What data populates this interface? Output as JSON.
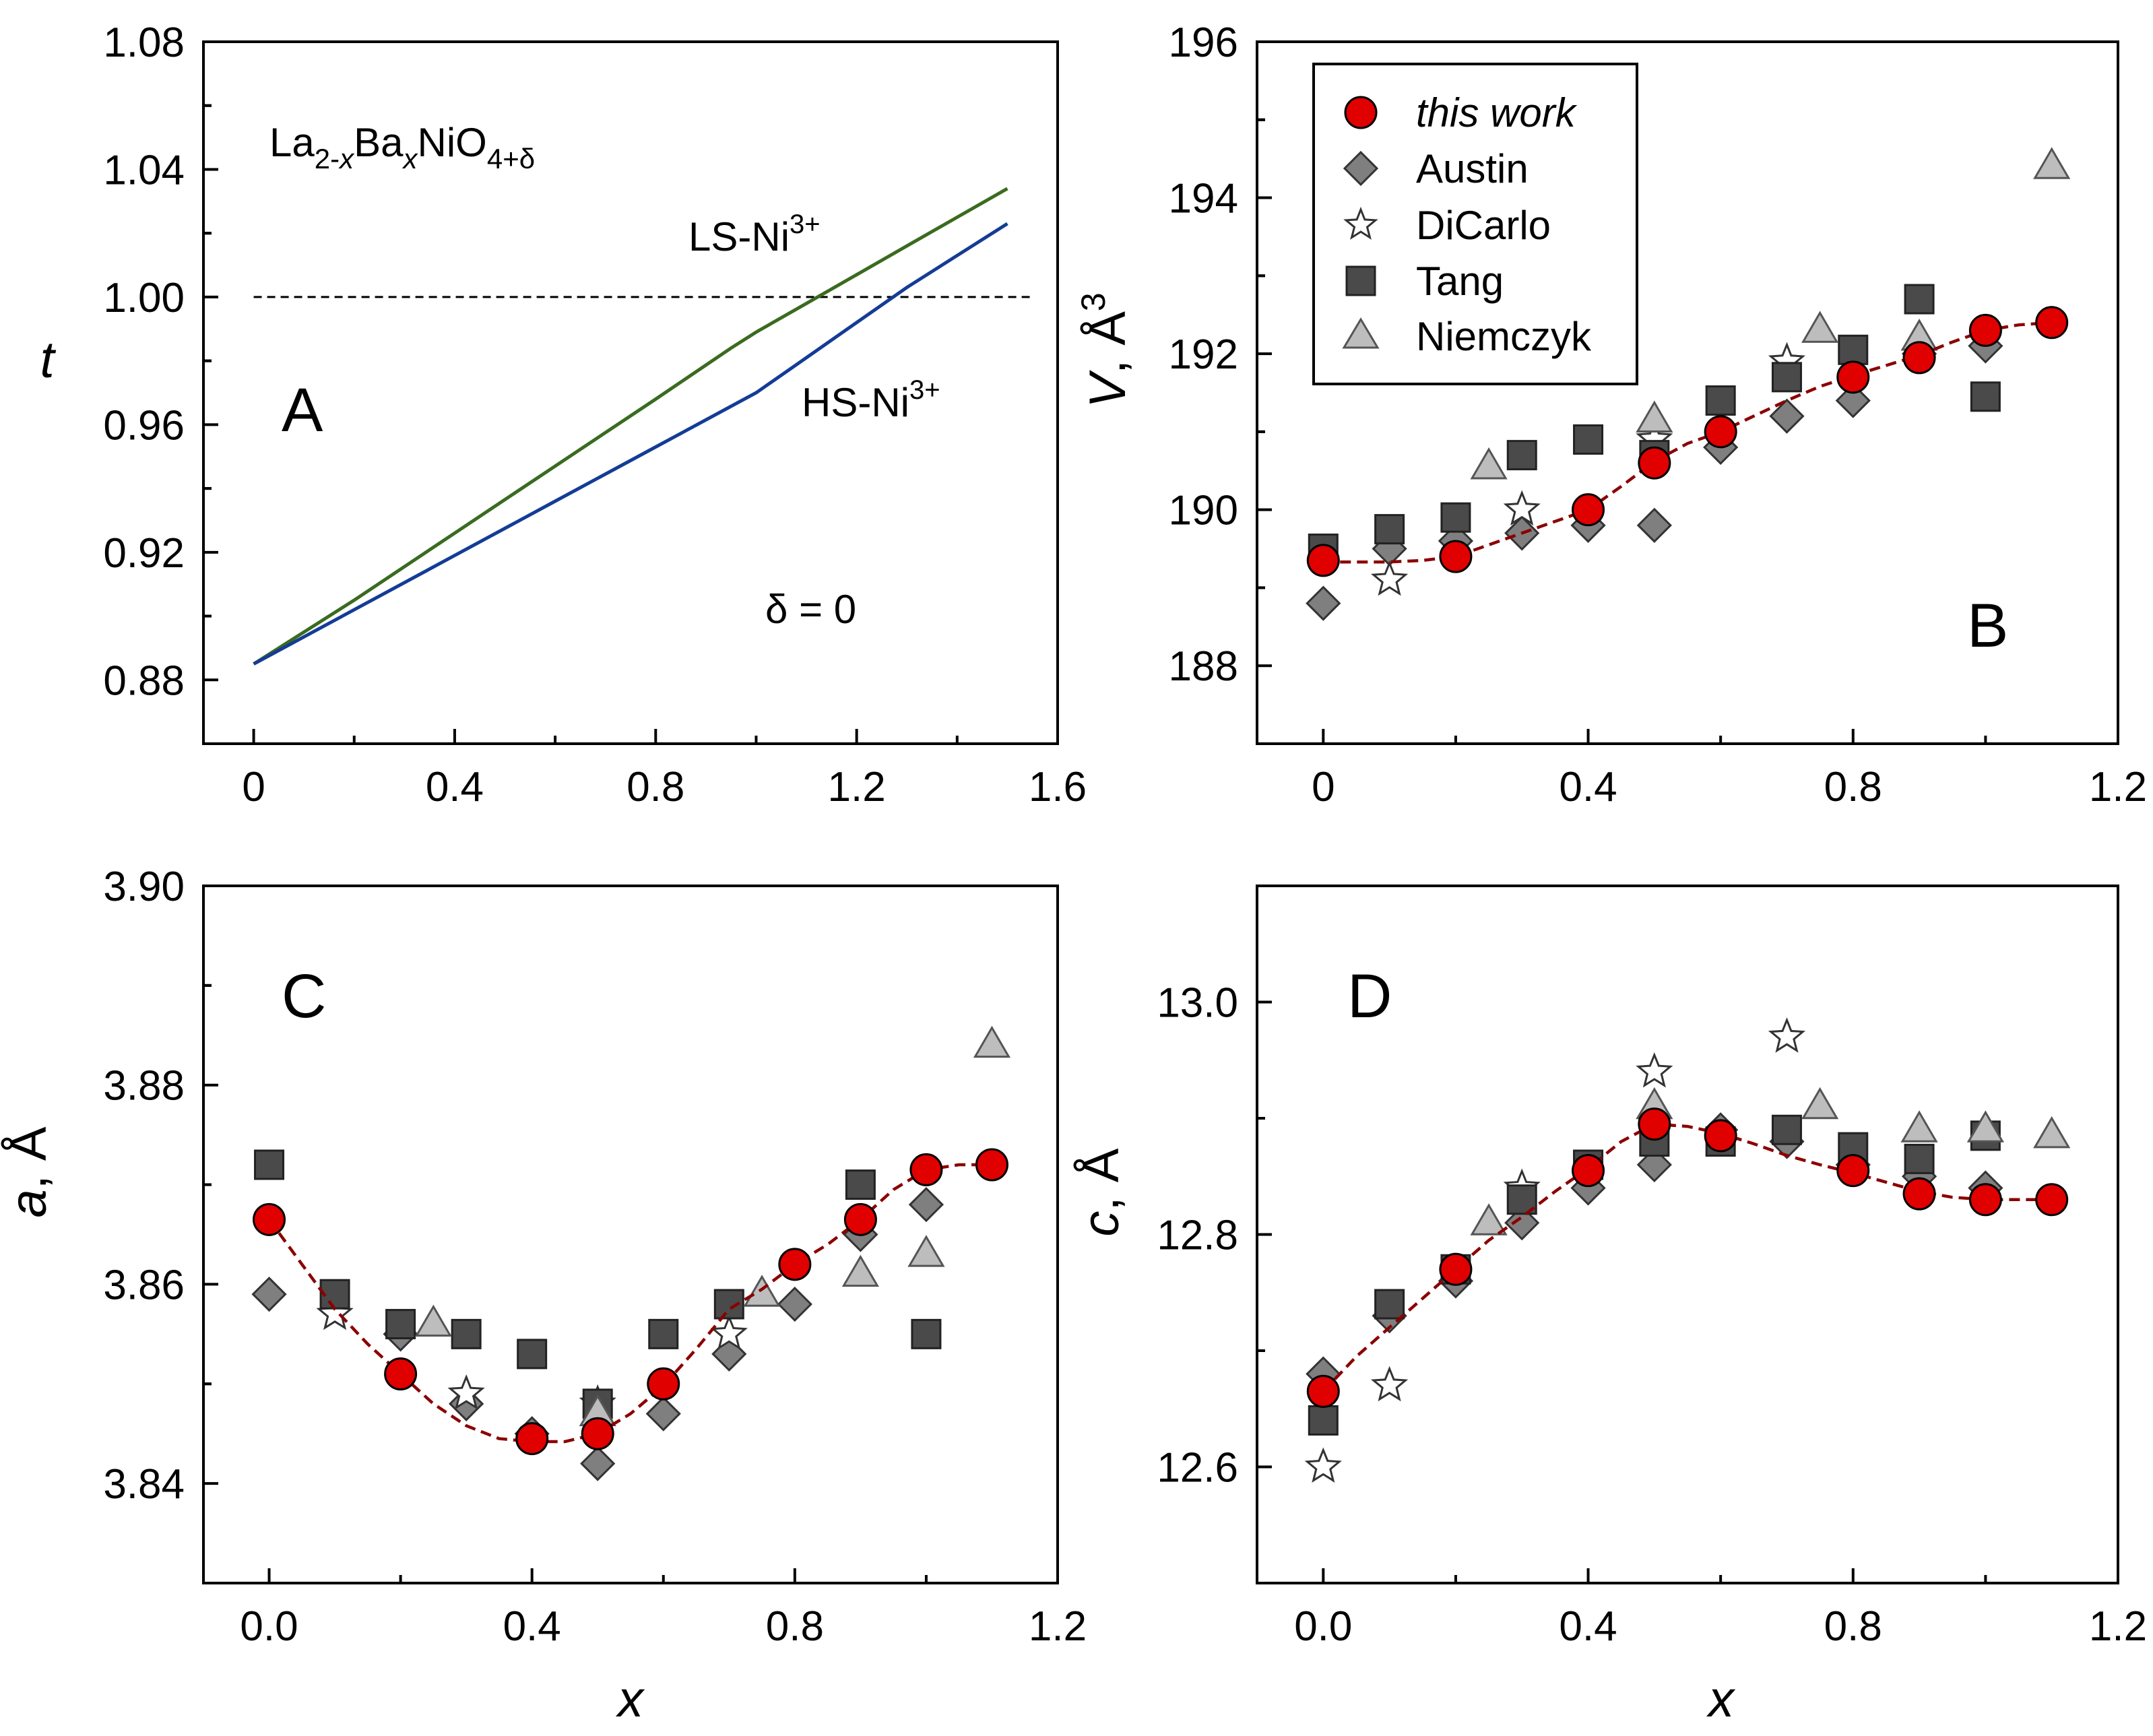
{
  "colors": {
    "this_work_fill": "#e00000",
    "fit_line": "#8b0000",
    "austin": "#7f7f7f",
    "dicarlo": "#ffffff",
    "tang": "#4a4a4a",
    "niemczyk": "#bdbdbd",
    "ls_line": "#3a6b1f",
    "hs_line": "#143c96"
  },
  "legend": {
    "this_work": "this work",
    "austin": "Austin",
    "dicarlo": "DiCarlo",
    "tang": "Tang",
    "niemczyk": "Niemczyk"
  },
  "panel_a": {
    "letter": "A",
    "formula": {
      "la": "La",
      "la_sub": "2-",
      "x1": "x",
      "ba": "Ba",
      "x2": "x",
      "nio": "NiO",
      "o_sub": "4+δ"
    },
    "delta_note": "δ = 0",
    "ls_label": {
      "text": "LS-Ni",
      "sup": "3+"
    },
    "hs_label": {
      "text": "HS-Ni",
      "sup": "3+"
    }
  },
  "panel_b": {
    "letter": "B"
  },
  "panel_c": {
    "letter": "C"
  },
  "panel_d": {
    "letter": "D"
  },
  "chart_data": [
    {
      "id": "A",
      "type": "line",
      "title": "La2-xBaxNiO4+δ",
      "xlabel": "",
      "ylabel": "t",
      "xlim": [
        -0.1,
        1.6
      ],
      "ylim": [
        0.86,
        1.08
      ],
      "xticks": [
        0,
        0.4,
        0.8,
        1.2,
        1.6
      ],
      "xtick_labels": [
        "0",
        "0.4",
        "0.8",
        "1.2",
        "1.6"
      ],
      "yticks": [
        0.88,
        0.92,
        0.96,
        1.0,
        1.04,
        1.08
      ],
      "ytick_labels": [
        "0.88",
        "0.92",
        "0.96",
        "1.00",
        "1.04",
        "1.08"
      ],
      "reference_line": {
        "y": 1.0,
        "x": [
          0,
          1.55
        ],
        "style": "dashed"
      },
      "series": [
        {
          "name": "LS-Ni3+",
          "x": [
            0,
            0.2,
            0.4,
            0.6,
            0.8,
            0.95,
            1.0,
            1.1,
            1.2,
            1.3,
            1.4,
            1.5
          ],
          "y": [
            0.885,
            0.905,
            0.926,
            0.947,
            0.968,
            0.984,
            0.989,
            0.998,
            1.007,
            1.016,
            1.025,
            1.034
          ]
        },
        {
          "name": "HS-Ni3+",
          "x": [
            0,
            0.2,
            0.4,
            0.6,
            0.8,
            1.0,
            1.1,
            1.2,
            1.3,
            1.4,
            1.5
          ],
          "y": [
            0.885,
            0.902,
            0.919,
            0.936,
            0.953,
            0.97,
            0.981,
            0.992,
            1.003,
            1.013,
            1.023
          ]
        }
      ]
    },
    {
      "id": "B",
      "type": "scatter",
      "xlabel": "",
      "ylabel": "V, Å3",
      "xlim": [
        -0.1,
        1.2
      ],
      "ylim": [
        187,
        196
      ],
      "xticks": [
        0,
        0.4,
        0.8,
        1.2
      ],
      "xtick_labels": [
        "0",
        "0.4",
        "0.8",
        "1.2"
      ],
      "yticks": [
        188,
        190,
        192,
        194,
        196
      ],
      "ytick_labels": [
        "188",
        "190",
        "192",
        "194",
        "196"
      ],
      "series": [
        {
          "name": "Austin",
          "x": [
            0,
            0.1,
            0.2,
            0.3,
            0.4,
            0.5,
            0.6,
            0.7,
            0.8,
            0.9,
            1.0
          ],
          "y": [
            188.8,
            189.5,
            189.6,
            189.7,
            189.8,
            189.8,
            190.8,
            191.2,
            191.4,
            192.0,
            192.1
          ]
        },
        {
          "name": "DiCarlo",
          "x": [
            0.1,
            0.3,
            0.5,
            0.7
          ],
          "y": [
            189.1,
            190.0,
            190.9,
            191.9
          ]
        },
        {
          "name": "Tang",
          "x": [
            0,
            0.1,
            0.2,
            0.3,
            0.4,
            0.5,
            0.6,
            0.7,
            0.8,
            0.9,
            1.0
          ],
          "y": [
            189.5,
            189.75,
            189.9,
            190.7,
            190.9,
            190.7,
            191.4,
            191.7,
            192.05,
            192.7,
            191.45
          ]
        },
        {
          "name": "Niemczyk",
          "x": [
            0.25,
            0.5,
            0.75,
            0.9,
            1.1
          ],
          "y": [
            190.55,
            191.15,
            192.3,
            192.2,
            194.4
          ]
        },
        {
          "name": "this work",
          "x": [
            0,
            0.2,
            0.4,
            0.5,
            0.6,
            0.8,
            0.9,
            1.0,
            1.1
          ],
          "y": [
            189.35,
            189.4,
            190.0,
            190.6,
            191.0,
            191.7,
            191.95,
            192.3,
            192.4
          ]
        },
        {
          "name": "fit",
          "line": true,
          "x": [
            0,
            0.05,
            0.1,
            0.15,
            0.2,
            0.25,
            0.3,
            0.35,
            0.4,
            0.45,
            0.5,
            0.55,
            0.6,
            0.65,
            0.7,
            0.75,
            0.8,
            0.85,
            0.9,
            0.95,
            1.0,
            1.05,
            1.1
          ],
          "y": [
            189.33,
            189.33,
            189.33,
            189.35,
            189.4,
            189.55,
            189.7,
            189.85,
            190.0,
            190.3,
            190.62,
            190.85,
            191.0,
            191.2,
            191.4,
            191.58,
            191.72,
            191.85,
            191.98,
            192.15,
            192.3,
            192.37,
            192.4
          ]
        }
      ]
    },
    {
      "id": "C",
      "type": "scatter",
      "xlabel": "x",
      "ylabel": "a, Å",
      "xlim": [
        -0.1,
        1.2
      ],
      "ylim": [
        3.83,
        3.9
      ],
      "xticks": [
        0,
        0.4,
        0.8,
        1.2
      ],
      "xtick_labels": [
        "0.0",
        "0.4",
        "0.8",
        "1.2"
      ],
      "yticks": [
        3.84,
        3.86,
        3.88,
        3.9
      ],
      "ytick_labels": [
        "3.84",
        "3.86",
        "3.88",
        "3.90"
      ],
      "series": [
        {
          "name": "Austin",
          "x": [
            0,
            0.2,
            0.3,
            0.4,
            0.5,
            0.6,
            0.7,
            0.8,
            0.9,
            1.0
          ],
          "y": [
            3.859,
            3.855,
            3.848,
            3.845,
            3.842,
            3.847,
            3.853,
            3.858,
            3.865,
            3.868
          ]
        },
        {
          "name": "DiCarlo",
          "x": [
            0.1,
            0.3,
            0.5,
            0.7
          ],
          "y": [
            3.857,
            3.849,
            3.848,
            3.855
          ]
        },
        {
          "name": "Tang",
          "x": [
            0,
            0.1,
            0.2,
            0.3,
            0.4,
            0.5,
            0.6,
            0.7,
            0.9,
            1.0
          ],
          "y": [
            3.872,
            3.859,
            3.856,
            3.855,
            3.853,
            3.848,
            3.855,
            3.858,
            3.87,
            3.855
          ]
        },
        {
          "name": "Niemczyk",
          "x": [
            0.25,
            0.5,
            0.75,
            0.9,
            1.0,
            1.1
          ],
          "y": [
            3.856,
            3.847,
            3.859,
            3.861,
            3.863,
            3.884
          ]
        },
        {
          "name": "this work",
          "x": [
            0,
            0.2,
            0.4,
            0.5,
            0.6,
            0.8,
            0.9,
            1.0,
            1.1
          ],
          "y": [
            3.8665,
            3.851,
            3.8445,
            3.845,
            3.85,
            3.862,
            3.8665,
            3.8715,
            3.872
          ]
        },
        {
          "name": "fit",
          "line": true,
          "x": [
            0,
            0.05,
            0.1,
            0.15,
            0.2,
            0.25,
            0.3,
            0.35,
            0.4,
            0.45,
            0.5,
            0.55,
            0.6,
            0.65,
            0.7,
            0.75,
            0.8,
            0.85,
            0.9,
            0.95,
            1.0,
            1.05,
            1.1
          ],
          "y": [
            3.8665,
            3.862,
            3.8575,
            3.854,
            3.851,
            3.848,
            3.8458,
            3.8445,
            3.8442,
            3.8442,
            3.845,
            3.847,
            3.8498,
            3.8535,
            3.8575,
            3.8595,
            3.862,
            3.864,
            3.8665,
            3.8695,
            3.8715,
            3.872,
            3.872
          ]
        }
      ]
    },
    {
      "id": "D",
      "type": "scatter",
      "xlabel": "x",
      "ylabel": "c, Å",
      "xlim": [
        -0.1,
        1.2
      ],
      "ylim": [
        12.5,
        13.1
      ],
      "xticks": [
        0,
        0.4,
        0.8,
        1.2
      ],
      "xtick_labels": [
        "0.0",
        "0.4",
        "0.8",
        "1.2"
      ],
      "yticks": [
        12.6,
        12.8,
        13.0
      ],
      "ytick_labels": [
        "12.6",
        "12.8",
        "13.0"
      ],
      "series": [
        {
          "name": "Austin",
          "x": [
            0,
            0.1,
            0.2,
            0.3,
            0.4,
            0.5,
            0.6,
            0.7,
            0.8,
            0.9,
            1.0
          ],
          "y": [
            12.68,
            12.73,
            12.76,
            12.81,
            12.84,
            12.86,
            12.89,
            12.88,
            12.86,
            12.85,
            12.84
          ]
        },
        {
          "name": "DiCarlo",
          "x": [
            0,
            0.1,
            0.3,
            0.5,
            0.7
          ],
          "y": [
            12.6,
            12.67,
            12.84,
            12.94,
            12.97
          ]
        },
        {
          "name": "Tang",
          "x": [
            0,
            0.1,
            0.2,
            0.3,
            0.4,
            0.5,
            0.6,
            0.7,
            0.8,
            0.9,
            1.0
          ],
          "y": [
            12.64,
            12.74,
            12.77,
            12.83,
            12.86,
            12.88,
            12.88,
            12.89,
            12.875,
            12.865,
            12.885
          ]
        },
        {
          "name": "Niemczyk",
          "x": [
            0.25,
            0.5,
            0.75,
            0.9,
            1.0,
            1.1
          ],
          "y": [
            12.81,
            12.91,
            12.91,
            12.89,
            12.89,
            12.885
          ]
        },
        {
          "name": "this work",
          "x": [
            0,
            0.2,
            0.4,
            0.5,
            0.6,
            0.8,
            0.9,
            1.0,
            1.1
          ],
          "y": [
            12.665,
            12.77,
            12.855,
            12.895,
            12.885,
            12.855,
            12.835,
            12.83,
            12.83
          ]
        },
        {
          "name": "fit",
          "line": true,
          "x": [
            0,
            0.05,
            0.1,
            0.15,
            0.2,
            0.25,
            0.3,
            0.35,
            0.4,
            0.45,
            0.5,
            0.55,
            0.6,
            0.65,
            0.7,
            0.75,
            0.8,
            0.85,
            0.9,
            0.95,
            1.0,
            1.05,
            1.1
          ],
          "y": [
            12.665,
            12.695,
            12.72,
            12.745,
            12.77,
            12.795,
            12.815,
            12.837,
            12.857,
            12.88,
            12.895,
            12.893,
            12.887,
            12.878,
            12.868,
            12.86,
            12.853,
            12.845,
            12.837,
            12.832,
            12.83,
            12.83,
            12.83
          ]
        }
      ]
    }
  ]
}
